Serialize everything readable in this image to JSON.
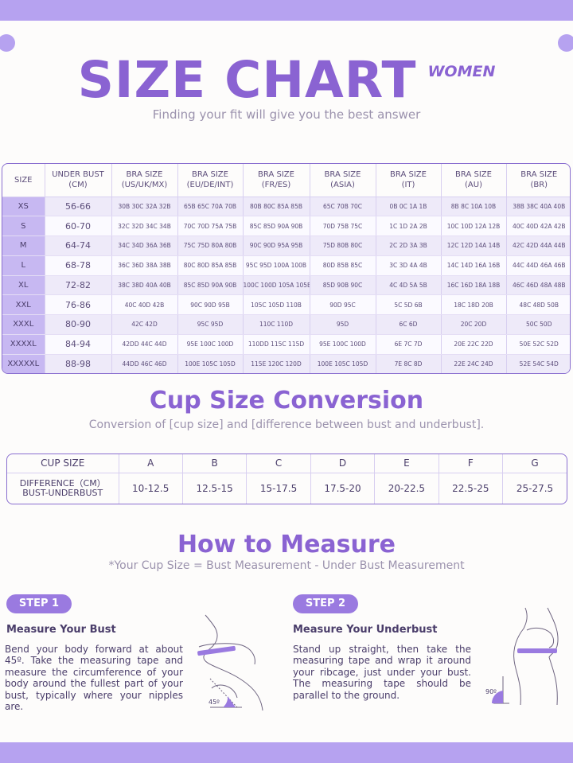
{
  "header": {
    "title": "SIZE CHART",
    "tag": "WOMEN",
    "subtitle": "Finding your fit will give you the best answer"
  },
  "size_table": {
    "headers": [
      [
        "SIZE",
        ""
      ],
      [
        "UNDER BUST",
        "(CM)"
      ],
      [
        "BRA SIZE",
        "(US/UK/MX)"
      ],
      [
        "BRA SIZE",
        "(EU/DE/INT)"
      ],
      [
        "BRA SIZE",
        "(FR/ES)"
      ],
      [
        "BRA SIZE",
        "(ASIA)"
      ],
      [
        "BRA SIZE",
        "(IT)"
      ],
      [
        "BRA SIZE",
        "(AU)"
      ],
      [
        "BRA SIZE",
        "(BR)"
      ]
    ],
    "rows": [
      [
        "XS",
        "56-66",
        "30B 30C 32A 32B",
        "65B 65C 70A 70B",
        "80B 80C 85A 85B",
        "65C 70B 70C",
        "0B 0C 1A 1B",
        "8B 8C 10A 10B",
        "38B 38C 40A 40B"
      ],
      [
        "S",
        "60-70",
        "32C 32D 34C 34B",
        "70C 70D 75A 75B",
        "85C 85D 90A 90B",
        "70D 75B 75C",
        "1C 1D 2A 2B",
        "10C 10D 12A 12B",
        "40C 40D 42A 42B"
      ],
      [
        "M",
        "64-74",
        "34C 34D 36A 36B",
        "75C 75D 80A 80B",
        "90C 90D 95A 95B",
        "75D 80B 80C",
        "2C 2D 3A 3B",
        "12C 12D 14A 14B",
        "42C 42D 44A 44B"
      ],
      [
        "L",
        "68-78",
        "36C 36D 38A 38B",
        "80C 80D 85A 85B",
        "95C 95D 100A 100B",
        "80D 85B 85C",
        "3C 3D 4A 4B",
        "14C 14D 16A 16B",
        "44C 44D 46A 46B"
      ],
      [
        "XL",
        "72-82",
        "38C 38D 40A 40B",
        "85C 85D 90A 90B",
        "100C 100D 105A 105B",
        "85D 90B 90C",
        "4C 4D 5A 5B",
        "16C 16D 18A 18B",
        "46C 46D 48A 48B"
      ],
      [
        "XXL",
        "76-86",
        "40C 40D 42B",
        "90C 90D 95B",
        "105C 105D 110B",
        "90D 95C",
        "5C 5D 6B",
        "18C 18D 20B",
        "48C 48D 50B"
      ],
      [
        "XXXL",
        "80-90",
        "42C 42D",
        "95C 95D",
        "110C 110D",
        "95D",
        "6C 6D",
        "20C 20D",
        "50C 50D"
      ],
      [
        "XXXXL",
        "84-94",
        "42DD 44C 44D",
        "95E 100C 100D",
        "110DD 115C 115D",
        "95E 100C 100D",
        "6E 7C 7D",
        "20E 22C 22D",
        "50E 52C 52D"
      ],
      [
        "XXXXXL",
        "88-98",
        "44DD 46C 46D",
        "100E 105C 105D",
        "115E 120C 120D",
        "100E 105C 105D",
        "7E 8C 8D",
        "22E 24C 24D",
        "52E 54C 54D"
      ]
    ]
  },
  "cup_section": {
    "title": "Cup Size Conversion",
    "note": "Conversion of [cup size] and [difference between bust and underbust].",
    "header_label": "CUP SIZE",
    "cups": [
      "A",
      "B",
      "C",
      "D",
      "E",
      "F",
      "G"
    ],
    "diff_label_1": "DIFFERENCE（CM）",
    "diff_label_2": "BUST-UNDERBUST",
    "diffs": [
      "10-12.5",
      "12.5-15",
      "15-17.5",
      "17.5-20",
      "20-22.5",
      "22.5-25",
      "25-27.5"
    ]
  },
  "measure": {
    "title": "How to Measure",
    "formula": "*Your Cup Size = Bust Measurement - Under Bust Measurement",
    "step1": {
      "pill": "STEP 1",
      "heading": "Measure Your Bust",
      "text": "Bend your body forward at about 45º. Take the measuring tape and measure the circumference of your body around the fullest part of your bust, typically where your nipples are.",
      "angle": "45º"
    },
    "step2": {
      "pill": "STEP 2",
      "heading": "Measure Your Underbust",
      "text": "Stand up straight, then take the measuring tape and wrap it around your ribcage, just under your bust. The measuring tape should be parallel to the ground.",
      "angle": "90º"
    }
  },
  "colors": {
    "accent": "#8a63d2",
    "band": "#b6a2f0",
    "row_alt": "#eeeaf9",
    "size_cell": "#c7b8f2"
  }
}
